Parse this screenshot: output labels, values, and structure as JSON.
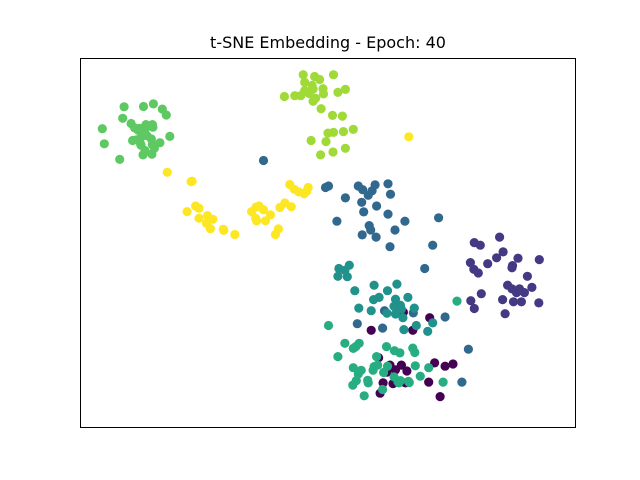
{
  "chart_data": {
    "type": "scatter",
    "title": "t-SNE Embedding -  Epoch: 40",
    "xlabel": "",
    "ylabel": "",
    "xlim": [
      0,
      100
    ],
    "ylim": [
      0,
      100
    ],
    "ticks_visible": false,
    "grid": false,
    "series": [
      {
        "color": "#440154",
        "points": [
          [
            58.7,
            26.4
          ],
          [
            65.2,
            31.3
          ],
          [
            70.5,
            29.8
          ],
          [
            67.1,
            26.4
          ],
          [
            75.2,
            17.3
          ],
          [
            73.6,
            16.7
          ],
          [
            71.5,
            17.6
          ],
          [
            62.5,
            17.0
          ],
          [
            60.2,
            19.0
          ],
          [
            64.8,
            17.0
          ],
          [
            63.6,
            15.7
          ],
          [
            65.9,
            15.4
          ],
          [
            61.9,
            15.1
          ],
          [
            72.6,
            8.5
          ],
          [
            70.3,
            12.4
          ],
          [
            65.6,
            12.2
          ],
          [
            63.1,
            12.0
          ],
          [
            60.5,
            9.4
          ],
          [
            61.1,
            12.2
          ]
        ]
      },
      {
        "color": "#443983",
        "points": [
          [
            79.5,
            50.1
          ],
          [
            80.7,
            49.4
          ],
          [
            84.6,
            51.6
          ],
          [
            78.7,
            44.7
          ],
          [
            82.2,
            44.4
          ],
          [
            79.4,
            42.9
          ],
          [
            80.3,
            41.9
          ],
          [
            85.3,
            47.6
          ],
          [
            84.0,
            46.0
          ],
          [
            87.1,
            43.3
          ],
          [
            88.3,
            45.9
          ],
          [
            90.2,
            41.0
          ],
          [
            87.2,
            43.9
          ],
          [
            92.6,
            45.5
          ],
          [
            91.1,
            38.0
          ],
          [
            88.0,
            36.6
          ],
          [
            87.1,
            37.6
          ],
          [
            86.2,
            38.6
          ],
          [
            89.6,
            36.6
          ],
          [
            85.2,
            34.7
          ],
          [
            87.4,
            34.1
          ],
          [
            85.7,
            30.9
          ],
          [
            78.8,
            34.4
          ],
          [
            80.9,
            36.3
          ],
          [
            89.0,
            34.1
          ],
          [
            92.5,
            33.8
          ],
          [
            88.6,
            37.6
          ],
          [
            79.5,
            32.3
          ]
        ]
      },
      {
        "color": "#31688e",
        "points": [
          [
            50.1,
            65.4
          ],
          [
            49.5,
            65.0
          ],
          [
            57.0,
            64.4
          ],
          [
            56.1,
            65.4
          ],
          [
            59.5,
            65.7
          ],
          [
            62.1,
            66.0
          ],
          [
            58.9,
            64.1
          ],
          [
            62.6,
            63.2
          ],
          [
            58.1,
            62.9
          ],
          [
            56.8,
            61.0
          ],
          [
            59.8,
            60.0
          ],
          [
            57.2,
            58.4
          ],
          [
            62.1,
            57.8
          ],
          [
            65.5,
            55.9
          ],
          [
            53.5,
            62.2
          ],
          [
            51.8,
            55.9
          ],
          [
            58.3,
            54.7
          ],
          [
            59.7,
            51.6
          ],
          [
            62.5,
            49.0
          ],
          [
            56.9,
            52.2
          ],
          [
            58.6,
            53.5
          ],
          [
            63.5,
            53.5
          ],
          [
            72.3,
            56.8
          ],
          [
            71.1,
            49.4
          ],
          [
            69.5,
            43.1
          ],
          [
            55.9,
            28.2
          ],
          [
            61.4,
            31.7
          ],
          [
            67.2,
            31.1
          ],
          [
            73.6,
            30.0
          ],
          [
            61.0,
            27.0
          ],
          [
            78.3,
            21.3
          ],
          [
            77.0,
            12.4
          ],
          [
            37.0,
            72.3
          ]
        ]
      },
      {
        "color": "#21918c",
        "points": [
          [
            52.2,
            43.1
          ],
          [
            53.4,
            42.6
          ],
          [
            54.3,
            44.0
          ],
          [
            52.0,
            41.0
          ],
          [
            53.9,
            40.9
          ],
          [
            59.3,
            38.6
          ],
          [
            63.9,
            38.9
          ],
          [
            60.3,
            35.3
          ],
          [
            59.2,
            34.7
          ],
          [
            62.0,
            37.1
          ],
          [
            63.6,
            34.8
          ],
          [
            66.1,
            35.3
          ],
          [
            64.6,
            33.2
          ],
          [
            67.4,
            32.4
          ],
          [
            61.9,
            31.0
          ],
          [
            63.6,
            30.8
          ],
          [
            65.1,
            29.8
          ],
          [
            67.8,
            27.7
          ],
          [
            65.3,
            26.6
          ],
          [
            71.1,
            28.4
          ],
          [
            70.1,
            26.1
          ],
          [
            63.3,
            32.9
          ],
          [
            58.7,
            31.7
          ],
          [
            64.8,
            32.1
          ],
          [
            55.4,
            37.1
          ],
          [
            56.2,
            32.4
          ]
        ]
      },
      {
        "color": "#27ad81",
        "points": [
          [
            56.3,
            22.9
          ],
          [
            55.6,
            22.0
          ],
          [
            52.0,
            19.3
          ],
          [
            53.4,
            22.9
          ],
          [
            61.8,
            22.0
          ],
          [
            63.4,
            20.9
          ],
          [
            67.1,
            21.6
          ],
          [
            64.5,
            20.3
          ],
          [
            67.5,
            20.4
          ],
          [
            56.7,
            15.6
          ],
          [
            59.3,
            16.6
          ],
          [
            55.1,
            16.3
          ],
          [
            55.7,
            12.8
          ],
          [
            58.1,
            12.2
          ],
          [
            62.0,
            16.7
          ],
          [
            63.3,
            13.8
          ],
          [
            64.3,
            12.2
          ],
          [
            66.2,
            12.6
          ],
          [
            68.6,
            14.0
          ],
          [
            70.3,
            16.3
          ],
          [
            73.2,
            12.4
          ],
          [
            55.0,
            11.6
          ],
          [
            57.3,
            8.7
          ],
          [
            64.1,
            12.5
          ],
          [
            60.0,
            17.0
          ],
          [
            59.8,
            19.3
          ],
          [
            56.1,
            14.6
          ],
          [
            66.4,
            12.3
          ],
          [
            58.0,
            12.9
          ],
          [
            61.0,
            10.4
          ],
          [
            55.1,
            21.5
          ],
          [
            67.6,
            16.8
          ],
          [
            76.0,
            34.3
          ],
          [
            50.1,
            27.7
          ],
          [
            61.2,
            15.0
          ],
          [
            59.1,
            15.6
          ],
          [
            64.6,
            12.8
          ]
        ]
      },
      {
        "color": "#5ec962",
        "points": [
          [
            8.9,
            86.8
          ],
          [
            12.8,
            86.9
          ],
          [
            14.8,
            87.6
          ],
          [
            8.6,
            83.7
          ],
          [
            16.6,
            86.2
          ],
          [
            17.4,
            84.6
          ],
          [
            10.3,
            82.3
          ],
          [
            11.0,
            81.1
          ],
          [
            12.0,
            81.0
          ],
          [
            13.3,
            82.0
          ],
          [
            14.6,
            82.0
          ],
          [
            11.7,
            80.5
          ],
          [
            12.7,
            79.7
          ],
          [
            13.1,
            80.7
          ],
          [
            14.7,
            81.3
          ],
          [
            13.5,
            79.0
          ],
          [
            12.4,
            78.7
          ],
          [
            14.4,
            78.1
          ],
          [
            12.2,
            76.8
          ],
          [
            14.6,
            76.6
          ],
          [
            13.1,
            75.0
          ],
          [
            10.6,
            77.7
          ],
          [
            15.0,
            75.6
          ],
          [
            12.3,
            76.4
          ],
          [
            11.4,
            77.9
          ],
          [
            18.1,
            78.8
          ],
          [
            16.1,
            77.1
          ],
          [
            4.5,
            80.9
          ],
          [
            4.9,
            76.8
          ],
          [
            8.0,
            72.6
          ],
          [
            12.7,
            73.8
          ],
          [
            14.5,
            74.0
          ]
        ]
      },
      {
        "color": "#a0da39",
        "points": [
          [
            45.0,
            95.5
          ],
          [
            47.3,
            95.0
          ],
          [
            51.1,
            95.5
          ],
          [
            45.3,
            93.4
          ],
          [
            46.8,
            92.6
          ],
          [
            48.3,
            94.2
          ],
          [
            49.0,
            91.7
          ],
          [
            47.0,
            91.6
          ],
          [
            49.1,
            90.3
          ],
          [
            46.2,
            90.4
          ],
          [
            44.5,
            89.8
          ],
          [
            41.2,
            89.6
          ],
          [
            43.3,
            89.8
          ],
          [
            47.5,
            89.1
          ],
          [
            53.5,
            91.5
          ],
          [
            52.0,
            90.7
          ],
          [
            48.6,
            86.3
          ],
          [
            50.9,
            84.5
          ],
          [
            52.9,
            84.3
          ],
          [
            55.1,
            80.7
          ],
          [
            50.0,
            79.7
          ],
          [
            51.1,
            79.9
          ],
          [
            53.1,
            80.1
          ],
          [
            49.6,
            77.4
          ],
          [
            53.5,
            75.6
          ],
          [
            51.0,
            74.6
          ],
          [
            46.6,
            77.7
          ],
          [
            48.5,
            73.8
          ],
          [
            45.3,
            91.2
          ],
          [
            47.0,
            88.3
          ]
        ]
      },
      {
        "color": "#fde725",
        "points": [
          [
            66.3,
            78.7
          ],
          [
            17.6,
            69.1
          ],
          [
            22.4,
            66.6
          ],
          [
            22.6,
            66.7
          ],
          [
            21.6,
            58.5
          ],
          [
            23.3,
            60.0
          ],
          [
            25.7,
            57.4
          ],
          [
            26.8,
            56.4
          ],
          [
            24.0,
            56.7
          ],
          [
            24.0,
            59.4
          ],
          [
            25.5,
            55.3
          ],
          [
            28.9,
            53.7
          ],
          [
            26.3,
            53.9
          ],
          [
            29.0,
            53.4
          ],
          [
            31.2,
            52.3
          ],
          [
            34.6,
            58.5
          ],
          [
            35.5,
            59.7
          ],
          [
            36.1,
            60.0
          ],
          [
            37.0,
            59.0
          ],
          [
            38.4,
            57.6
          ],
          [
            40.3,
            59.6
          ],
          [
            40.0,
            53.8
          ],
          [
            35.6,
            56.0
          ],
          [
            35.4,
            56.7
          ],
          [
            39.4,
            52.3
          ],
          [
            37.4,
            56.0
          ],
          [
            42.3,
            65.8
          ],
          [
            44.1,
            63.8
          ],
          [
            45.7,
            64.0
          ],
          [
            46.0,
            65.0
          ],
          [
            43.2,
            64.5
          ],
          [
            41.3,
            60.8
          ],
          [
            42.6,
            59.8
          ],
          [
            45.2,
            63.3
          ]
        ]
      }
    ]
  }
}
